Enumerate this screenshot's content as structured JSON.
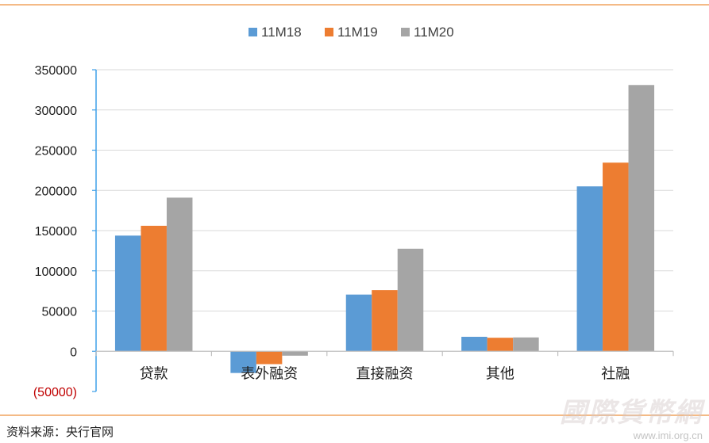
{
  "colors": {
    "frame_line": "#f0a35f",
    "axis_line": "#3ea0e8",
    "grid": "#d9d9d9"
  },
  "source_text": "资料来源：央行官网",
  "watermark": {
    "logo_text": "國際貨幣網",
    "url": "www.imi.org.cn"
  },
  "chart_data": {
    "type": "bar",
    "title": "",
    "xlabel": "",
    "ylabel": "",
    "categories": [
      "贷款",
      "表外融资",
      "直接融资",
      "其他",
      "社融"
    ],
    "series": [
      {
        "name": "11M18",
        "color": "#5b9bd5",
        "values": [
          143800,
          -27000,
          70500,
          18000,
          205000
        ]
      },
      {
        "name": "11M19",
        "color": "#ed7d31",
        "values": [
          156000,
          -16000,
          76000,
          16800,
          234500
        ]
      },
      {
        "name": "11M20",
        "color": "#a5a5a5",
        "values": [
          191000,
          -5500,
          127500,
          17200,
          331000
        ]
      }
    ],
    "ylim": [
      -50000,
      350000
    ],
    "yticks": [
      -50000,
      0,
      50000,
      100000,
      150000,
      200000,
      250000,
      300000,
      350000
    ],
    "ytick_labels": [
      "(50000)",
      "0",
      "50000",
      "100000",
      "150000",
      "200000",
      "250000",
      "300000",
      "350000"
    ],
    "grid": true,
    "legend_position": "top-center"
  }
}
